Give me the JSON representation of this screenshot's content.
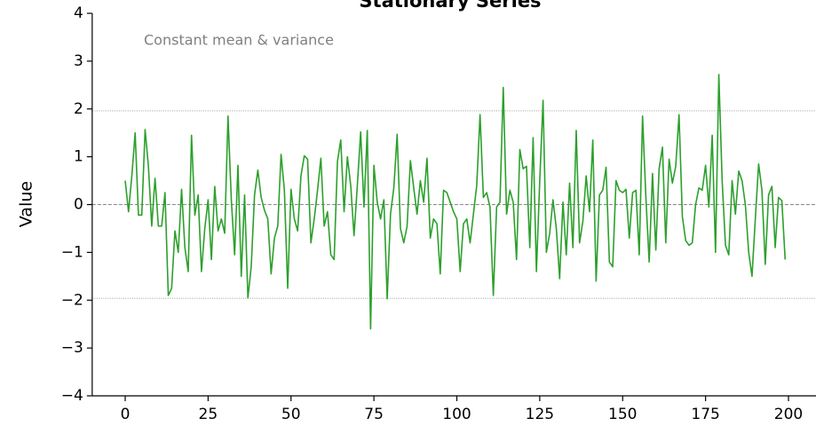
{
  "chart_data": {
    "type": "line",
    "title": "Stationary Series",
    "ylabel": "Value",
    "annotation": "Constant mean & variance",
    "x": [
      0,
      1,
      2,
      3,
      4,
      5,
      6,
      7,
      8,
      9,
      10,
      11,
      12,
      13,
      14,
      15,
      16,
      17,
      18,
      19,
      20,
      21,
      22,
      23,
      24,
      25,
      26,
      27,
      28,
      29,
      30,
      31,
      32,
      33,
      34,
      35,
      36,
      37,
      38,
      39,
      40,
      41,
      42,
      43,
      44,
      45,
      46,
      47,
      48,
      49,
      50,
      51,
      52,
      53,
      54,
      55,
      56,
      57,
      58,
      59,
      60,
      61,
      62,
      63,
      64,
      65,
      66,
      67,
      68,
      69,
      70,
      71,
      72,
      73,
      74,
      75,
      76,
      77,
      78,
      79,
      80,
      81,
      82,
      83,
      84,
      85,
      86,
      87,
      88,
      89,
      90,
      91,
      92,
      93,
      94,
      95,
      96,
      97,
      98,
      99,
      100,
      101,
      102,
      103,
      104,
      105,
      106,
      107,
      108,
      109,
      110,
      111,
      112,
      113,
      114,
      115,
      116,
      117,
      118,
      119,
      120,
      121,
      122,
      123,
      124,
      125,
      126,
      127,
      128,
      129,
      130,
      131,
      132,
      133,
      134,
      135,
      136,
      137,
      138,
      139,
      140,
      141,
      142,
      143,
      144,
      145,
      146,
      147,
      148,
      149,
      150,
      151,
      152,
      153,
      154,
      155,
      156,
      157,
      158,
      159,
      160,
      161,
      162,
      163,
      164,
      165,
      166,
      167,
      168,
      169,
      170,
      171,
      172,
      173,
      174,
      175,
      176,
      177,
      178,
      179,
      180,
      181,
      182,
      183,
      184,
      185,
      186,
      187,
      188,
      189,
      190,
      191,
      192,
      193,
      194,
      195,
      196,
      197,
      198,
      199
    ],
    "series": [
      {
        "name": "Stationary",
        "color": "#2ca02c",
        "values": [
          0.5,
          -0.15,
          0.6,
          1.5,
          -0.22,
          -0.22,
          1.57,
          0.8,
          -0.45,
          0.55,
          -0.45,
          -0.45,
          0.25,
          -1.9,
          -1.75,
          -0.55,
          -1.0,
          0.32,
          -0.9,
          -1.4,
          1.45,
          -0.22,
          0.2,
          -1.4,
          -0.5,
          0.1,
          -1.15,
          0.38,
          -0.55,
          -0.3,
          -0.6,
          1.85,
          0.1,
          -1.05,
          0.82,
          -1.5,
          0.2,
          -1.95,
          -1.3,
          0.2,
          0.72,
          0.15,
          -0.12,
          -0.3,
          -1.45,
          -0.7,
          -0.45,
          1.05,
          0.3,
          -1.75,
          0.32,
          -0.3,
          -0.55,
          0.6,
          1.02,
          0.95,
          -0.8,
          -0.3,
          0.3,
          0.97,
          -0.45,
          -0.15,
          -1.05,
          -1.15,
          0.9,
          1.35,
          -0.15,
          1.0,
          0.4,
          -0.65,
          0.4,
          1.52,
          -0.05,
          1.55,
          -2.6,
          0.82,
          0.05,
          -0.3,
          0.1,
          -1.97,
          -0.2,
          0.35,
          1.47,
          -0.5,
          -0.8,
          -0.45,
          0.92,
          0.35,
          -0.2,
          0.5,
          0.05,
          0.97,
          -0.7,
          -0.3,
          -0.4,
          -1.45,
          0.3,
          0.25,
          0.05,
          -0.15,
          -0.3,
          -1.4,
          -0.4,
          -0.3,
          -0.8,
          -0.2,
          0.4,
          1.88,
          0.15,
          0.25,
          -0.05,
          -1.9,
          -0.05,
          0.05,
          2.45,
          -0.2,
          0.3,
          0.05,
          -1.15,
          1.15,
          0.75,
          0.8,
          -0.9,
          1.4,
          -1.4,
          0.5,
          2.18,
          -1.0,
          -0.6,
          0.1,
          -0.5,
          -1.55,
          0.05,
          -1.05,
          0.45,
          -0.9,
          1.55,
          -0.8,
          -0.35,
          0.6,
          -0.15,
          1.35,
          -1.6,
          0.2,
          0.3,
          0.78,
          -1.2,
          -1.3,
          0.5,
          0.3,
          0.25,
          0.32,
          -0.7,
          0.25,
          0.3,
          -1.05,
          1.85,
          0.15,
          -1.2,
          0.65,
          -0.95,
          0.75,
          1.2,
          -0.8,
          0.95,
          0.45,
          0.8,
          1.88,
          -0.25,
          -0.75,
          -0.85,
          -0.8,
          0.0,
          0.35,
          0.3,
          0.82,
          -0.05,
          1.45,
          -1.0,
          2.72,
          0.5,
          -0.85,
          -1.05,
          0.5,
          -0.2,
          0.7,
          0.5,
          0.0,
          -1.0,
          -1.5,
          -0.3,
          0.85,
          0.3,
          -1.25,
          0.2,
          0.38,
          -0.9,
          0.15,
          0.08,
          -1.15
        ]
      }
    ],
    "reference_lines": [
      {
        "value": 0,
        "style": "dashed",
        "color": "#888888"
      },
      {
        "value": 1.96,
        "style": "dotted",
        "color": "#999999"
      },
      {
        "value": -1.96,
        "style": "dotted",
        "color": "#999999"
      }
    ],
    "xlim": [
      -9.95,
      208.95
    ],
    "xticks": [
      0,
      25,
      50,
      75,
      100,
      125,
      150,
      175,
      200
    ],
    "ylim": [
      -4,
      4
    ],
    "yticks": [
      {
        "value": -4,
        "label": "−4"
      },
      {
        "value": -3,
        "label": "−3"
      },
      {
        "value": -2,
        "label": "−2"
      },
      {
        "value": -1,
        "label": "−1"
      },
      0,
      1,
      2,
      3,
      4
    ]
  }
}
